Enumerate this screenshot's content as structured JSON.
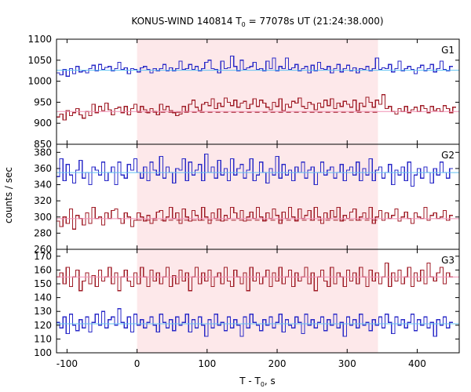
{
  "chart_data": {
    "type": "line",
    "title": "KONUS-WIND 140814 T",
    "title_sub": "0",
    "title_rest": " = 77078s UT (21:24:38.000)",
    "xlabel": "T - T",
    "xlabel_sub": "0",
    "xlabel_rest": ", s",
    "ylabel": "counts / sec",
    "xlim": [
      -115,
      460
    ],
    "xticks": [
      -100,
      0,
      100,
      200,
      300,
      400
    ],
    "xtick_labels": [
      "-100",
      "0",
      "100",
      "200",
      "300",
      "400"
    ],
    "highlight": {
      "x0": 0,
      "x1": 344,
      "color": "#fde8ea"
    },
    "colors": {
      "blue": "#2b2bc8",
      "blue_bg": "#62c2f2",
      "red": "#a01e28",
      "red_bg": "#f08fb4",
      "highlight": "#fde8ea"
    },
    "panels": [
      {
        "label": "G1",
        "ylim": [
          850,
          1100
        ],
        "yticks": [
          850,
          900,
          950,
          1000,
          1050,
          1100
        ],
        "ytick_labels": [
          "850",
          "900",
          "950",
          "1000",
          "1050",
          "1100"
        ],
        "show_bottom_tick": true,
        "series": [
          {
            "color": "blue",
            "start": -115,
            "step": 4.6,
            "values": [
              1020,
              1015,
              1028,
              1012,
              1030,
              1018,
              1035,
              1022,
              1025,
              1020,
              1030,
              1038,
              1025,
              1040,
              1028,
              1033,
              1035,
              1025,
              1030,
              1045,
              1028,
              1032,
              1018,
              1030,
              1028,
              1022,
              1032,
              1035,
              1028,
              1020,
              1030,
              1025,
              1030,
              1040,
              1025,
              1032,
              1025,
              1030,
              1048,
              1028,
              1030,
              1040,
              1028,
              1035,
              1025,
              1030,
              1045,
              1050,
              1030,
              1028,
              1020,
              1048,
              1030,
              1032,
              1060,
              1035,
              1025,
              1050,
              1028,
              1032,
              1035,
              1045,
              1028,
              1030,
              1025,
              1048,
              1030,
              1055,
              1025,
              1035,
              1030,
              1055,
              1028,
              1032,
              1040,
              1025,
              1030,
              1035,
              1020,
              1038,
              1025,
              1045,
              1030,
              1028,
              1035,
              1020,
              1030,
              1040,
              1022,
              1030,
              1038,
              1025,
              1032,
              1020,
              1030,
              1028,
              1035,
              1025,
              1030,
              1055,
              1028,
              1032,
              1030,
              1040,
              1022,
              1030,
              1048,
              1025,
              1030,
              1035,
              1028,
              1018,
              1032,
              1038,
              1025,
              1030,
              1040,
              1022,
              1030,
              1048,
              1028,
              1025,
              1035
            ]
          },
          {
            "color": "blue_bg",
            "type": "flat",
            "value": 1026
          },
          {
            "color": "red",
            "start": -115,
            "step": 4.6,
            "values": [
              915,
              922,
              908,
              930,
              918,
              925,
              935,
              920,
              912,
              928,
              918,
              945,
              925,
              940,
              930,
              948,
              932,
              920,
              935,
              938,
              925,
              940,
              920,
              935,
              945,
              928,
              940,
              932,
              925,
              935,
              928,
              920,
              945,
              932,
              940,
              930,
              925,
              918,
              922,
              940,
              928,
              945,
              955,
              938,
              930,
              945,
              950,
              942,
              958,
              935,
              948,
              940,
              960,
              950,
              942,
              955,
              938,
              948,
              952,
              935,
              945,
              958,
              940,
              955,
              948,
              938,
              932,
              950,
              940,
              958,
              930,
              945,
              938,
              952,
              948,
              960,
              940,
              935,
              950,
              945,
              932,
              948,
              938,
              955,
              942,
              958,
              935,
              948,
              940,
              952,
              945,
              938,
              955,
              930,
              948,
              940,
              962,
              950,
              938,
              955,
              945,
              968,
              935,
              940,
              928,
              922,
              935,
              928,
              940,
              925,
              932,
              938,
              928,
              942,
              935,
              925,
              940,
              930,
              935,
              928,
              942,
              935,
              925,
              938
            ]
          },
          {
            "color": "red_bg",
            "type": "flat",
            "value": 928
          },
          {
            "color": "red",
            "type": "dashed",
            "value": 926,
            "x0": 0,
            "x1": 344
          }
        ]
      },
      {
        "label": "G2",
        "ylim": [
          260,
          390
        ],
        "yticks": [
          260,
          280,
          300,
          320,
          340,
          360,
          380
        ],
        "ytick_labels": [
          "260",
          "280",
          "300",
          "320",
          "340",
          "360",
          "380"
        ],
        "show_bottom_tick": true,
        "series": [
          {
            "color": "blue",
            "start": -115,
            "step": 4.6,
            "values": [
              350,
              372,
              345,
              365,
              352,
              342,
              358,
              370,
              348,
              355,
              340,
              362,
              358,
              352,
              368,
              345,
              355,
              362,
              340,
              368,
              352,
              348,
              365,
              358,
              372,
              355,
              348,
              362,
              345,
              368,
              358,
              352,
              375,
              348,
              362,
              355,
              342,
              360,
              358,
              372,
              345,
              368,
              352,
              358,
              365,
              345,
              378,
              355,
              362,
              348,
              370,
              352,
              360,
              345,
              372,
              352,
              360,
              365,
              348,
              358,
              372,
              345,
              352,
              368,
              355,
              342,
              360,
              352,
              375,
              348,
              365,
              352,
              358,
              345,
              362,
              355,
              368,
              348,
              358,
              362,
              340,
              355,
              368,
              352,
              358,
              362,
              348,
              355,
              365,
              345,
              358,
              362,
              352,
              368,
              345,
              360,
              352,
              372,
              345,
              358,
              362,
              348,
              355,
              365,
              340,
              358,
              352,
              362,
              345,
              368,
              338,
              352,
              360,
              348,
              362,
              355,
              342,
              360,
              352,
              368,
              355,
              348,
              360
            ]
          },
          {
            "color": "blue_bg",
            "type": "flat",
            "value": 355
          },
          {
            "color": "red",
            "start": -115,
            "step": 4.6,
            "values": [
              295,
              288,
              300,
              292,
              310,
              285,
              302,
              298,
              290,
              305,
              292,
              312,
              298,
              300,
              290,
              305,
              298,
              308,
              310,
              298,
              292,
              305,
              300,
              288,
              296,
              305,
              300,
              295,
              302,
              292,
              298,
              306,
              308,
              295,
              300,
              312,
              298,
              305,
              292,
              310,
              300,
              295,
              308,
              302,
              296,
              312,
              300,
              292,
              305,
              298,
              310,
              295,
              302,
              298,
              312,
              305,
              298,
              308,
              295,
              300,
              306,
              298,
              312,
              300,
              295,
              305,
              298,
              310,
              302,
              292,
              306,
              298,
              312,
              300,
              295,
              310,
              298,
              302,
              308,
              296,
              312,
              300,
              292,
              305,
              298,
              308,
              300,
              312,
              295,
              302,
              298,
              306,
              310,
              296,
              300,
              305,
              298,
              312,
              292,
              300,
              308,
              296,
              305,
              298,
              302,
              310,
              295,
              300,
              306,
              298,
              292,
              305,
              300,
              298,
              312,
              296,
              302,
              305,
              298,
              300,
              308,
              296,
              302
            ]
          },
          {
            "color": "red_bg",
            "type": "flat",
            "value": 298
          },
          {
            "color": "red",
            "type": "dashed",
            "value": 296,
            "x0": 0,
            "x1": 344
          }
        ]
      },
      {
        "label": "G3",
        "ylim": [
          100,
          175
        ],
        "yticks": [
          100,
          110,
          120,
          130,
          140,
          150,
          160,
          170
        ],
        "ytick_labels": [
          "100",
          "110",
          "120",
          "130",
          "140",
          "150",
          "160",
          "170"
        ],
        "show_bottom_tick": true,
        "series": [
          {
            "color": "red",
            "start": -115,
            "step": 4.6,
            "values": [
              155,
              158,
              150,
              162,
              148,
              155,
              160,
              145,
              152,
              158,
              150,
              156,
              148,
              160,
              152,
              155,
              162,
              150,
              158,
              145,
              155,
              160,
              152,
              148,
              158,
              150,
              162,
              155,
              148,
              160,
              152,
              158,
              150,
              155,
              162,
              148,
              156,
              150,
              160,
              152,
              158,
              145,
              155,
              162,
              150,
              158,
              152,
              160,
              148,
              155,
              158,
              150,
              162,
              152,
              148,
              160,
              155,
              150,
              158,
              145,
              162,
              152,
              158,
              150,
              155,
              160,
              148,
              158,
              152,
              162,
              150,
              155,
              160,
              148,
              158,
              152,
              155,
              162,
              150,
              158,
              145,
              155,
              160,
              152,
              148,
              162,
              150,
              158,
              155,
              148,
              160,
              152,
              158,
              150,
              162,
              155,
              148,
              160,
              152,
              158,
              150,
              155,
              165,
              148,
              158,
              152,
              160,
              150,
              155,
              162,
              148,
              158,
              152,
              160,
              150,
              165,
              155,
              152,
              158,
              162,
              150,
              158,
              155
            ]
          },
          {
            "color": "red_bg",
            "type": "flat",
            "value": 155
          },
          {
            "color": "blue",
            "start": -115,
            "step": 4.6,
            "values": [
              122,
              118,
              126,
              114,
              128,
              120,
              116,
              124,
              118,
              126,
              115,
              122,
              128,
              120,
              130,
              118,
              124,
              126,
              120,
              132,
              122,
              118,
              126,
              115,
              128,
              120,
              124,
              118,
              122,
              126,
              120,
              115,
              128,
              122,
              118,
              124,
              116,
              126,
              120,
              122,
              128,
              115,
              124,
              118,
              126,
              120,
              112,
              124,
              118,
              128,
              120,
              122,
              116,
              126,
              118,
              124,
              120,
              112,
              126,
              118,
              128,
              122,
              120,
              116,
              124,
              120,
              126,
              118,
              122,
              128,
              115,
              124,
              120,
              118,
              126,
              122,
              114,
              128,
              120,
              124,
              118,
              122,
              126,
              116,
              124,
              120,
              128,
              118,
              122,
              112,
              126,
              120,
              124,
              118,
              128,
              120,
              122,
              116,
              124,
              120,
              126,
              118,
              128,
              122,
              114,
              126,
              120,
              124,
              118,
              122,
              128,
              116,
              124,
              120,
              126,
              118,
              122,
              112,
              124,
              120,
              126,
              118,
              122
            ]
          },
          {
            "color": "blue_bg",
            "type": "flat",
            "value": 121
          }
        ]
      }
    ]
  }
}
